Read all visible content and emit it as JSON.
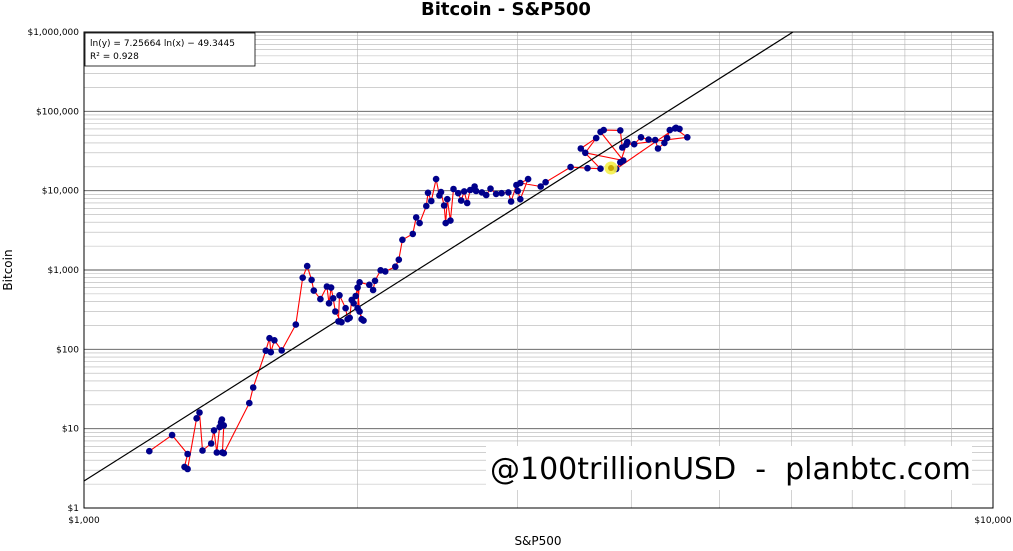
{
  "chart_data": {
    "type": "scatter",
    "title": "Bitcoin - S&P500",
    "xlabel": "S&P500",
    "ylabel": "Bitcoin",
    "xscale": "log",
    "yscale": "log",
    "xlim": [
      1000,
      10000
    ],
    "ylim": [
      1,
      1000000
    ],
    "x_ticks": [
      {
        "value": 1000,
        "label": "$1,000"
      },
      {
        "value": 10000,
        "label": "$10,000"
      }
    ],
    "y_ticks": [
      {
        "value": 1000000,
        "label": "$1,000,000"
      },
      {
        "value": 100000,
        "label": "$100,000"
      },
      {
        "value": 10000,
        "label": "$10,000"
      },
      {
        "value": 1000,
        "label": "$1,000"
      },
      {
        "value": 100,
        "label": "$100"
      },
      {
        "value": 10,
        "label": "$10"
      },
      {
        "value": 1,
        "label": "$1"
      }
    ],
    "grid": true,
    "regression": {
      "equation": "ln(y) = 7.25664 ln(x) − 49.3445",
      "r_squared": "R² = 0.928",
      "slope": 7.25664,
      "intercept": -49.3445
    },
    "colors": {
      "points": "#00008b",
      "path": "#ff0000",
      "fit": "#000000",
      "highlight": "#f5f04a",
      "grid": "#b4b4b4"
    },
    "points": [
      [
        1180,
        5.2
      ],
      [
        1250,
        8.3
      ],
      [
        1300,
        4.8
      ],
      [
        1290,
        3.3
      ],
      [
        1300,
        3.1
      ],
      [
        1330,
        13.5
      ],
      [
        1340,
        16
      ],
      [
        1350,
        5.3
      ],
      [
        1380,
        6.5
      ],
      [
        1390,
        9.5
      ],
      [
        1400,
        5
      ],
      [
        1410,
        10.5
      ],
      [
        1415,
        12
      ],
      [
        1418,
        13
      ],
      [
        1425,
        11
      ],
      [
        1420,
        5
      ],
      [
        1425,
        4.9
      ],
      [
        1520,
        21
      ],
      [
        1535,
        33
      ],
      [
        1585,
        96
      ],
      [
        1600,
        138
      ],
      [
        1605,
        92
      ],
      [
        1620,
        130
      ],
      [
        1650,
        97
      ],
      [
        1710,
        205
      ],
      [
        1740,
        800
      ],
      [
        1760,
        1120
      ],
      [
        1780,
        750
      ],
      [
        1790,
        550
      ],
      [
        1820,
        430
      ],
      [
        1850,
        620
      ],
      [
        1860,
        380
      ],
      [
        1870,
        600
      ],
      [
        1880,
        440
      ],
      [
        1890,
        300
      ],
      [
        1920,
        220
      ],
      [
        1905,
        225
      ],
      [
        1910,
        480
      ],
      [
        1940,
        330
      ],
      [
        1950,
        240
      ],
      [
        1960,
        250
      ],
      [
        1970,
        420
      ],
      [
        1980,
        380
      ],
      [
        1990,
        470
      ],
      [
        2000,
        600
      ],
      [
        2010,
        300
      ],
      [
        2020,
        240
      ],
      [
        2030,
        230
      ],
      [
        2000,
        330
      ],
      [
        2010,
        700
      ],
      [
        2060,
        650
      ],
      [
        2080,
        560
      ],
      [
        2090,
        730
      ],
      [
        2120,
        990
      ],
      [
        2145,
        960
      ],
      [
        2200,
        1100
      ],
      [
        2220,
        1350
      ],
      [
        2240,
        2400
      ],
      [
        2300,
        2850
      ],
      [
        2320,
        4600
      ],
      [
        2340,
        3900
      ],
      [
        2380,
        6400
      ],
      [
        2390,
        9400
      ],
      [
        2410,
        7400
      ],
      [
        2440,
        14000
      ],
      [
        2460,
        8700
      ],
      [
        2470,
        9600
      ],
      [
        2490,
        6500
      ],
      [
        2500,
        3900
      ],
      [
        2510,
        7800
      ],
      [
        2530,
        4200
      ],
      [
        2550,
        10500
      ],
      [
        2580,
        9300
      ],
      [
        2600,
        7500
      ],
      [
        2620,
        9800
      ],
      [
        2640,
        7000
      ],
      [
        2660,
        10200
      ],
      [
        2690,
        11300
      ],
      [
        2700,
        9900
      ],
      [
        2740,
        9500
      ],
      [
        2770,
        8800
      ],
      [
        2800,
        10600
      ],
      [
        2840,
        9100
      ],
      [
        2880,
        9300
      ],
      [
        2930,
        9500
      ],
      [
        2950,
        7300
      ],
      [
        2990,
        11800
      ],
      [
        3000,
        9900
      ],
      [
        3020,
        7800
      ],
      [
        3080,
        14000
      ],
      [
        3020,
        12500
      ],
      [
        3180,
        11300
      ],
      [
        3220,
        12800
      ],
      [
        3430,
        19800
      ],
      [
        3580,
        19200
      ],
      [
        3700,
        18900
      ],
      [
        3520,
        34000
      ],
      [
        3660,
        46000
      ],
      [
        3560,
        30000
      ],
      [
        3920,
        24000
      ],
      [
        3700,
        55000
      ],
      [
        3730,
        58000
      ],
      [
        3890,
        57500
      ],
      [
        3910,
        35000
      ],
      [
        3960,
        41000
      ],
      [
        4030,
        38500
      ],
      [
        4100,
        47000
      ],
      [
        4180,
        44000
      ],
      [
        4250,
        43500
      ],
      [
        4280,
        34000
      ],
      [
        4350,
        40000
      ],
      [
        4380,
        46000
      ],
      [
        4410,
        58000
      ],
      [
        4470,
        61000
      ],
      [
        4610,
        47000
      ],
      [
        3950,
        38000
      ],
      [
        3890,
        22800
      ],
      [
        3850,
        18800
      ],
      [
        4480,
        62000
      ],
      [
        4520,
        60000
      ]
    ],
    "highlight_point": [
      3800,
      19300
    ]
  },
  "watermark": "@100trillionUSD  -  planbtc.com"
}
